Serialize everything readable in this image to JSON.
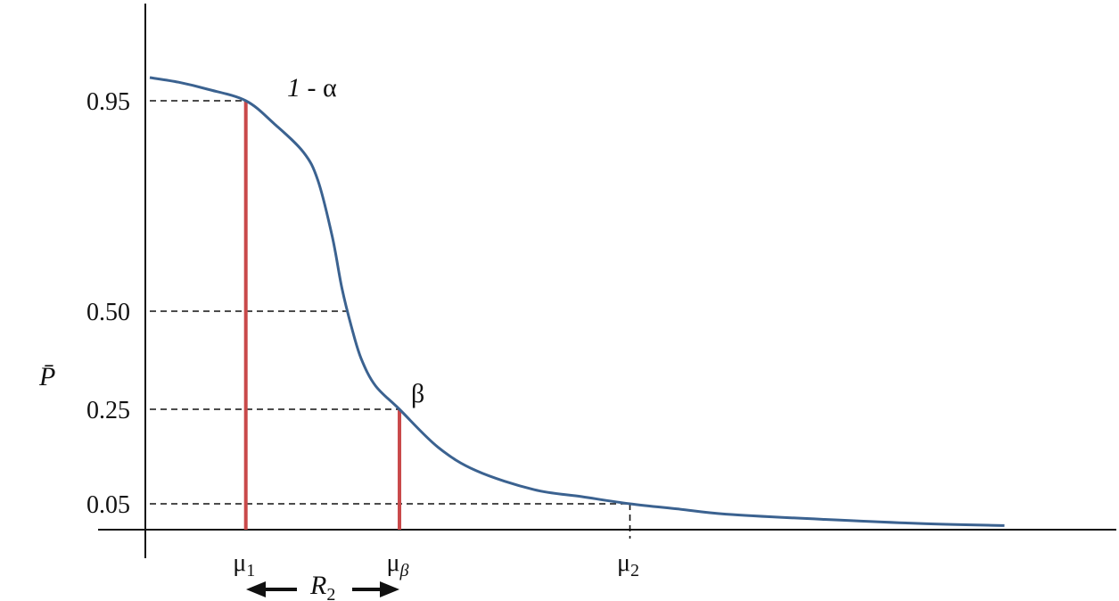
{
  "chart_data": {
    "type": "line",
    "title": "",
    "ylabel": "P̄",
    "xlabel": "",
    "ylim": [
      0,
      1
    ],
    "yticks": [
      {
        "value": 0.95,
        "label": "0.95"
      },
      {
        "value": 0.5,
        "label": "0.50"
      },
      {
        "value": 0.25,
        "label": "0.25"
      },
      {
        "value": 0.05,
        "label": "0.05"
      }
    ],
    "xticks": [
      {
        "key": "mu1",
        "value": 1.0,
        "base": "μ",
        "sub": "1"
      },
      {
        "key": "mubeta",
        "value": 2.6,
        "base": "μ",
        "sub": "β"
      },
      {
        "key": "mu2",
        "value": 5.0,
        "base": "μ",
        "sub": "2"
      }
    ],
    "xlim": [
      0,
      10.0
    ],
    "series": [
      {
        "color": "#3b6290",
        "x": [
          0.0,
          0.3,
          0.6,
          1.0,
          1.3,
          1.6,
          1.75,
          1.9,
          2.0,
          2.1,
          2.2,
          2.35,
          2.6,
          3.0,
          3.4,
          4.0,
          4.5,
          5.0,
          5.5,
          6.0,
          7.0,
          8.0,
          8.9
        ],
        "y": [
          1.0,
          0.99,
          0.975,
          0.95,
          0.9,
          0.84,
          0.78,
          0.66,
          0.55,
          0.46,
          0.38,
          0.31,
          0.25,
          0.17,
          0.12,
          0.08,
          0.065,
          0.05,
          0.04,
          0.03,
          0.02,
          0.012,
          0.008
        ]
      }
    ],
    "guides": [
      {
        "y": 0.95,
        "x_end": 1.0,
        "drop": false
      },
      {
        "y": 0.5,
        "x_end": 2.1,
        "drop": false
      },
      {
        "y": 0.25,
        "x_end": 2.6,
        "drop": false
      },
      {
        "y": 0.05,
        "x_end": 5.0,
        "drop": true
      }
    ],
    "markers": [
      {
        "x": 1.0,
        "y": 0.95,
        "color": "#c9494a"
      },
      {
        "x": 2.6,
        "y": 0.25,
        "color": "#c9494a"
      }
    ],
    "annotations": {
      "one_minus_alpha": {
        "num": "1",
        "rest": " - α"
      },
      "beta": "β",
      "range": {
        "base": "R",
        "sub": "2"
      }
    }
  }
}
